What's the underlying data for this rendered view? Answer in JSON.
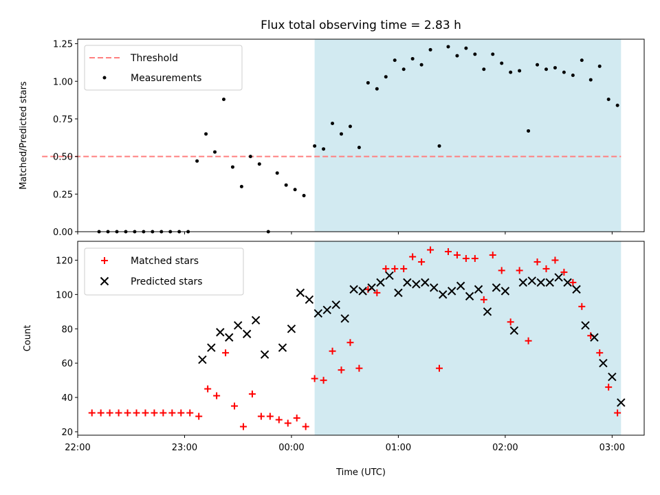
{
  "title": "Flux total observing time = 2.83 h",
  "colors": {
    "threshold": "#ff7f7f",
    "measurements": "#000000",
    "matched": "#ff0000",
    "predicted": "#000000",
    "shade": "#add8e6"
  },
  "chart_data": [
    {
      "type": "scatter",
      "ylabel": "Matched/Predicted stars",
      "ylim": [
        0,
        1.28
      ],
      "yticks": [
        "0.00",
        "0.25",
        "0.50",
        "0.75",
        "1.00",
        "1.25"
      ],
      "ytick_values": [
        0,
        0.25,
        0.5,
        0.75,
        1.0,
        1.25
      ],
      "legend_position": "top-left",
      "threshold": {
        "name": "Threshold",
        "value": 0.5,
        "x_range": [
          "21:40",
          "03:05"
        ]
      },
      "shaded_region": {
        "x_range": [
          "00:13",
          "03:05"
        ]
      },
      "series": [
        {
          "name": "Measurements",
          "x": [
            "22:12",
            "22:17",
            "22:22",
            "22:27",
            "22:32",
            "22:37",
            "22:42",
            "22:47",
            "22:52",
            "22:57",
            "23:02",
            "23:07",
            "23:12",
            "23:17",
            "23:22",
            "23:27",
            "23:32",
            "23:37",
            "23:42",
            "23:47",
            "23:52",
            "23:57",
            "00:02",
            "00:07",
            "00:13",
            "00:18",
            "00:23",
            "00:28",
            "00:33",
            "00:38",
            "00:43",
            "00:48",
            "00:53",
            "00:58",
            "01:03",
            "01:08",
            "01:13",
            "01:18",
            "01:23",
            "01:28",
            "01:33",
            "01:38",
            "01:43",
            "01:48",
            "01:53",
            "01:58",
            "02:03",
            "02:08",
            "02:13",
            "02:18",
            "02:23",
            "02:28",
            "02:33",
            "02:38",
            "02:43",
            "02:48",
            "02:53",
            "02:58",
            "03:03"
          ],
          "y": [
            0,
            0,
            0,
            0,
            0,
            0,
            0,
            0,
            0,
            0,
            0,
            0.47,
            0.65,
            0.53,
            0.88,
            0.43,
            0.3,
            0.5,
            0.45,
            0,
            0.39,
            0.31,
            0.28,
            0.24,
            0.57,
            0.55,
            0.72,
            0.65,
            0.7,
            0.56,
            0.99,
            0.95,
            1.03,
            1.14,
            1.08,
            1.15,
            1.11,
            1.21,
            0.57,
            1.23,
            1.17,
            1.22,
            1.18,
            1.08,
            1.18,
            1.12,
            1.06,
            1.07,
            0.67,
            1.11,
            1.08,
            1.09,
            1.06,
            1.04,
            1.14,
            1.01,
            1.1,
            0.88,
            0.84
          ]
        }
      ]
    },
    {
      "type": "scatter",
      "xlabel": "Time (UTC)",
      "ylabel": "Count",
      "ylim": [
        18,
        131
      ],
      "xlim": [
        "22:00",
        "03:18"
      ],
      "yticks": [
        "20",
        "40",
        "60",
        "80",
        "100",
        "120"
      ],
      "ytick_values": [
        20,
        40,
        60,
        80,
        100,
        120
      ],
      "xticks": [
        "22:00",
        "23:00",
        "00:00",
        "01:00",
        "02:00",
        "03:00"
      ],
      "legend_position": "top-left",
      "shaded_region": {
        "x_range": [
          "00:13",
          "03:05"
        ]
      },
      "series": [
        {
          "name": "Matched stars",
          "x": [
            "22:08",
            "22:13",
            "22:18",
            "22:23",
            "22:28",
            "22:33",
            "22:38",
            "22:43",
            "22:48",
            "22:53",
            "22:58",
            "23:03",
            "23:08",
            "23:13",
            "23:18",
            "23:23",
            "23:28",
            "23:33",
            "23:38",
            "23:43",
            "23:48",
            "23:53",
            "23:58",
            "00:03",
            "00:08",
            "00:13",
            "00:18",
            "00:23",
            "00:28",
            "00:33",
            "00:38",
            "00:43",
            "00:48",
            "00:53",
            "00:58",
            "01:03",
            "01:08",
            "01:13",
            "01:18",
            "01:23",
            "01:28",
            "01:33",
            "01:38",
            "01:43",
            "01:48",
            "01:53",
            "01:58",
            "02:03",
            "02:08",
            "02:13",
            "02:18",
            "02:23",
            "02:28",
            "02:33",
            "02:38",
            "02:43",
            "02:48",
            "02:53",
            "02:58",
            "03:03"
          ],
          "y": [
            31,
            31,
            31,
            31,
            31,
            31,
            31,
            31,
            31,
            31,
            31,
            31,
            29,
            45,
            41,
            66,
            35,
            23,
            42,
            29,
            29,
            27,
            25,
            28,
            23,
            51,
            50,
            67,
            56,
            72,
            57,
            103,
            101,
            115,
            115,
            115,
            122,
            119,
            126,
            57,
            125,
            123,
            121,
            121,
            97,
            123,
            114,
            84,
            114,
            73,
            119,
            115,
            120,
            113,
            107,
            93,
            76,
            66,
            46,
            31
          ]
        },
        {
          "name": "Predicted stars",
          "x": [
            "23:10",
            "23:15",
            "23:20",
            "23:25",
            "23:30",
            "23:35",
            "23:40",
            "23:45",
            "23:55",
            "24:00",
            "24:05",
            "24:10",
            "24:15",
            "24:20",
            "24:25",
            "24:30",
            "24:35",
            "24:40",
            "24:45",
            "24:50",
            "24:55",
            "25:00",
            "25:05",
            "25:10",
            "25:15",
            "25:20",
            "25:25",
            "25:30",
            "25:35",
            "25:40",
            "25:45",
            "25:50",
            "25:55",
            "26:00",
            "26:05",
            "26:10",
            "26:15",
            "26:20",
            "26:25",
            "26:30",
            "26:35",
            "26:40",
            "26:45",
            "26:50",
            "26:55",
            "27:00",
            "27:05"
          ],
          "y": [
            62,
            69,
            78,
            75,
            82,
            77,
            85,
            65,
            69,
            80,
            101,
            97,
            89,
            91,
            94,
            86,
            103,
            102,
            104,
            107,
            111,
            101,
            107,
            106,
            107,
            104,
            100,
            102,
            105,
            99,
            103,
            90,
            104,
            102,
            79,
            107,
            108,
            107,
            107,
            110,
            107,
            103,
            82,
            75,
            60,
            52,
            37
          ]
        }
      ]
    }
  ]
}
